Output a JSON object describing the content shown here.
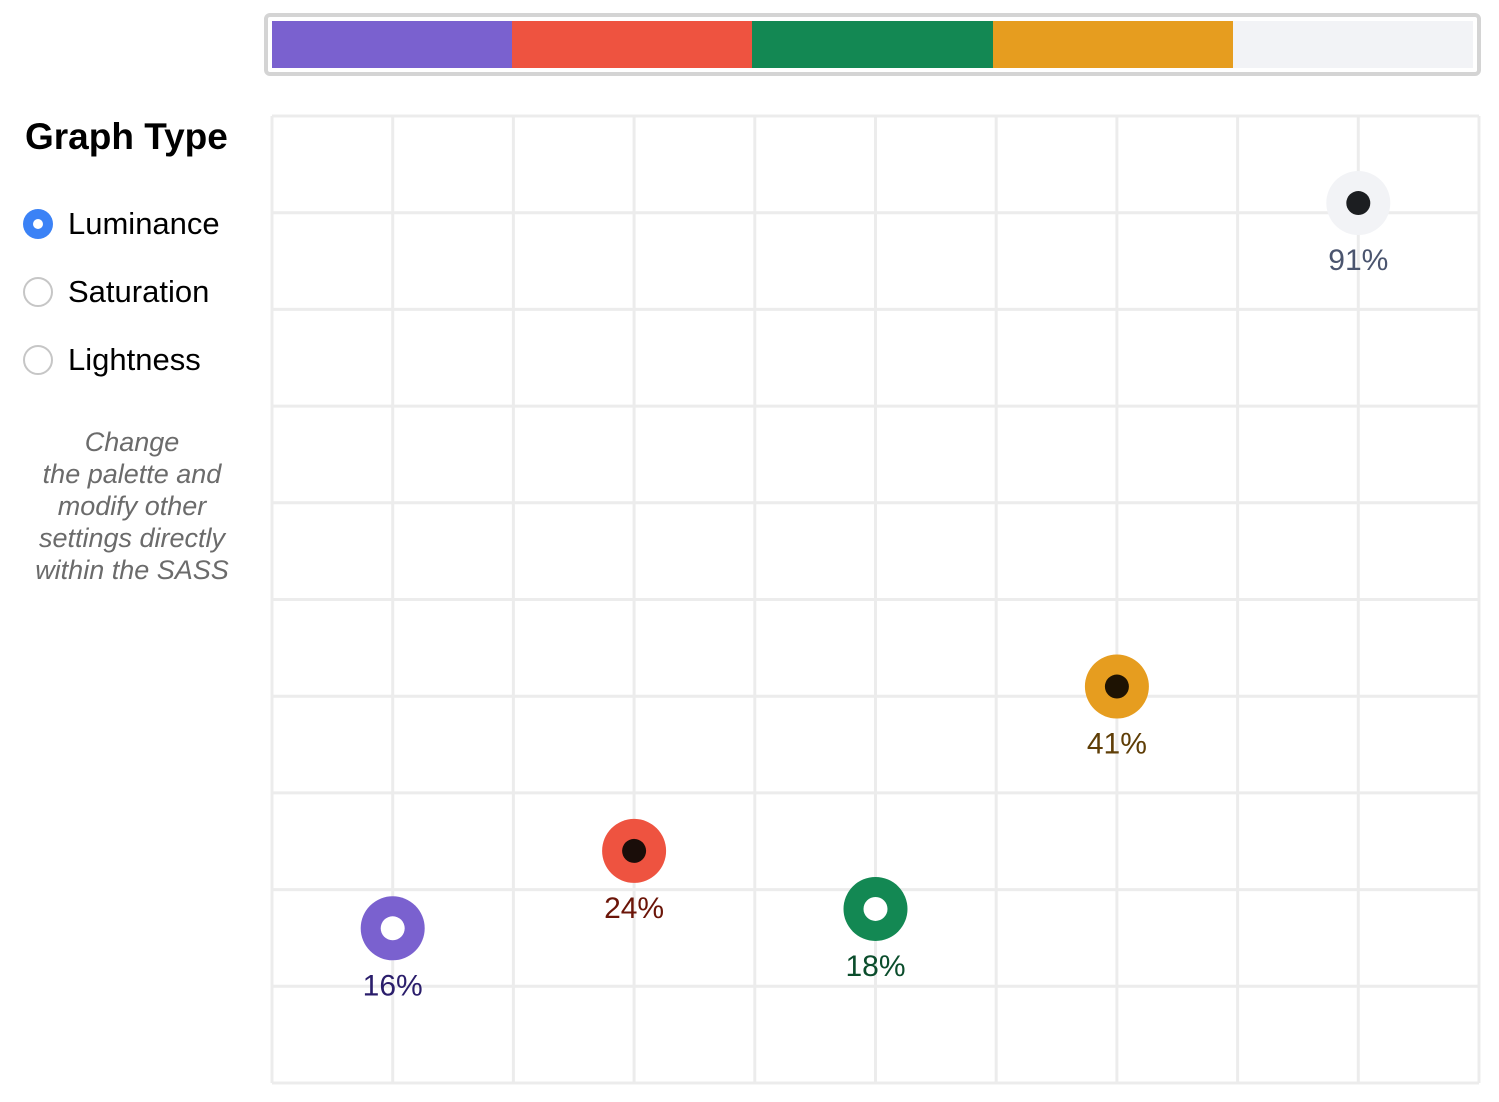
{
  "palette": {
    "swatches": [
      {
        "name": "purple",
        "color": "#7a61cf"
      },
      {
        "name": "red",
        "color": "#ee5340"
      },
      {
        "name": "green",
        "color": "#138853"
      },
      {
        "name": "orange",
        "color": "#e69d1f"
      },
      {
        "name": "light-gray",
        "color": "#f2f3f6"
      }
    ]
  },
  "sidebar": {
    "title": "Graph Type",
    "options": [
      {
        "label": "Luminance",
        "checked": true
      },
      {
        "label": "Saturation",
        "checked": false
      },
      {
        "label": "Lightness",
        "checked": false
      }
    ],
    "note_lines": [
      "Change",
      "the palette and",
      "modify other",
      "settings directly",
      "within the SASS"
    ]
  },
  "chart_data": {
    "type": "scatter",
    "title": "",
    "xlabel": "",
    "ylabel": "",
    "ylim": [
      0,
      100
    ],
    "grid": true,
    "points": [
      {
        "label": "16%",
        "value": 16,
        "color": "#7a61cf",
        "text_color": "#2a1d6b",
        "center": "#ffffff"
      },
      {
        "label": "24%",
        "value": 24,
        "color": "#ee5340",
        "text_color": "#6b1508",
        "center": "#1a0d09"
      },
      {
        "label": "18%",
        "value": 18,
        "color": "#138853",
        "text_color": "#0b4d2c",
        "center": "#ffffff"
      },
      {
        "label": "41%",
        "value": 41,
        "color": "#e69d1f",
        "text_color": "#5f3e07",
        "center": "#1e1303"
      },
      {
        "label": "91%",
        "value": 91,
        "color": "#f2f3f6",
        "text_color": "#4b556f",
        "center": "#1c1e21"
      }
    ]
  }
}
